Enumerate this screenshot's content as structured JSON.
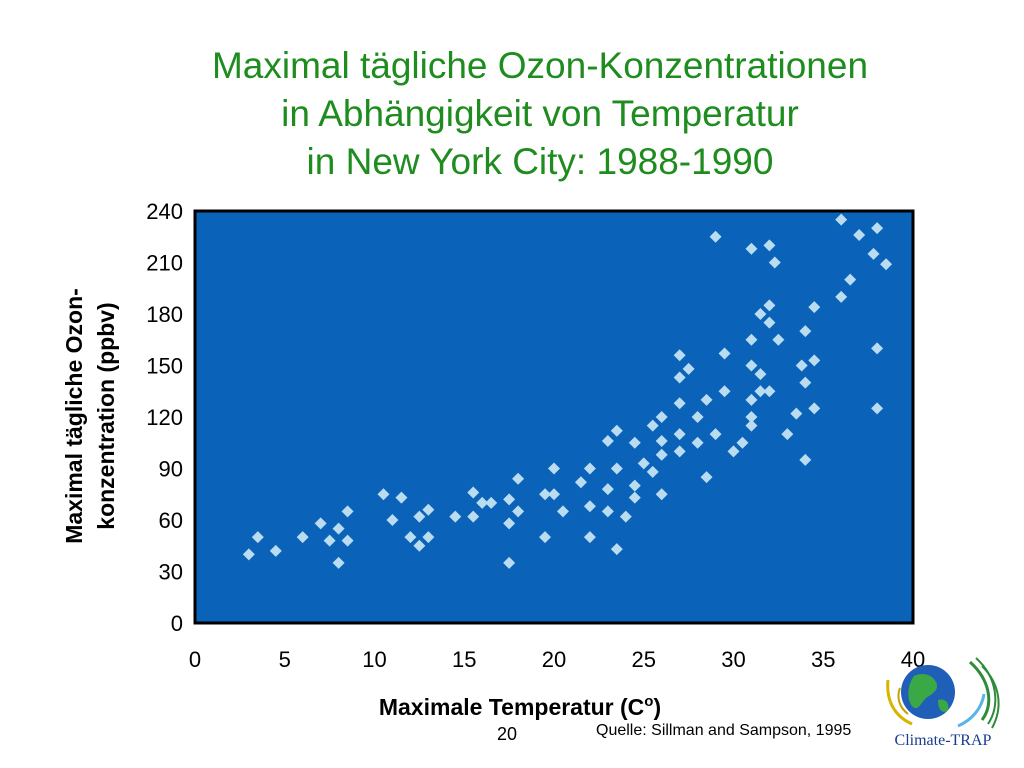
{
  "slide": {
    "title_lines": [
      "Maximal tägliche Ozon-Konzentrationen",
      "in Abhängigkeit von Temperatur",
      "in New York City: 1988-1990"
    ],
    "page_number": "20",
    "source": "Quelle: Sillman and Sampson, 1995",
    "logo_text": "Climate-TRAP"
  },
  "colors": {
    "title": "#1e8c1e",
    "plot_background": "#0a63b8",
    "marker": "#b9dcf0"
  },
  "chart_data": {
    "type": "scatter",
    "title": "Maximal tägliche Ozon-Konzentrationen in Abhängigkeit von Temperatur in New York City: 1988-1990",
    "xlabel": "Maximale Temperatur (Co)",
    "xlabel_main": "Maximale Temperatur (C",
    "xlabel_sup": "o",
    "xlabel_close": ")",
    "ylabel_line1": "Maximal tägliche Ozon-",
    "ylabel_line2": "konzentration (ppbv)",
    "xlim": [
      0,
      40
    ],
    "ylim": [
      0,
      240
    ],
    "xticks": [
      0,
      5,
      10,
      15,
      20,
      25,
      30,
      35,
      40
    ],
    "yticks": [
      0,
      30,
      60,
      90,
      120,
      150,
      180,
      210,
      240
    ],
    "grid": false,
    "marker": "diamond",
    "points": [
      [
        3.0,
        40
      ],
      [
        3.5,
        50
      ],
      [
        4.5,
        42
      ],
      [
        6.0,
        50
      ],
      [
        7.0,
        58
      ],
      [
        7.5,
        48
      ],
      [
        8.0,
        55
      ],
      [
        8.0,
        35
      ],
      [
        8.5,
        48
      ],
      [
        8.5,
        65
      ],
      [
        10.5,
        75
      ],
      [
        11.0,
        60
      ],
      [
        11.5,
        73
      ],
      [
        12.0,
        50
      ],
      [
        12.5,
        45
      ],
      [
        12.5,
        62
      ],
      [
        13.0,
        66
      ],
      [
        13.0,
        50
      ],
      [
        14.5,
        62
      ],
      [
        15.5,
        62
      ],
      [
        15.5,
        76
      ],
      [
        16.0,
        70
      ],
      [
        16.5,
        70
      ],
      [
        17.5,
        72
      ],
      [
        17.5,
        58
      ],
      [
        17.5,
        35
      ],
      [
        18.0,
        84
      ],
      [
        18.0,
        65
      ],
      [
        19.5,
        75
      ],
      [
        19.5,
        50
      ],
      [
        20.0,
        90
      ],
      [
        20.0,
        75
      ],
      [
        20.5,
        65
      ],
      [
        21.5,
        82
      ],
      [
        22.0,
        90
      ],
      [
        22.0,
        68
      ],
      [
        22.0,
        50
      ],
      [
        23.0,
        78
      ],
      [
        23.0,
        65
      ],
      [
        23.0,
        106
      ],
      [
        23.5,
        112
      ],
      [
        23.5,
        90
      ],
      [
        23.5,
        43
      ],
      [
        24.0,
        62
      ],
      [
        24.5,
        105
      ],
      [
        24.5,
        80
      ],
      [
        24.5,
        73
      ],
      [
        25.0,
        93
      ],
      [
        25.5,
        115
      ],
      [
        25.5,
        88
      ],
      [
        26.0,
        120
      ],
      [
        26.0,
        106
      ],
      [
        26.0,
        98
      ],
      [
        26.0,
        75
      ],
      [
        27.0,
        156
      ],
      [
        27.0,
        143
      ],
      [
        27.0,
        128
      ],
      [
        27.0,
        110
      ],
      [
        27.0,
        100
      ],
      [
        27.5,
        148
      ],
      [
        28.0,
        120
      ],
      [
        28.0,
        105
      ],
      [
        28.5,
        130
      ],
      [
        28.5,
        85
      ],
      [
        29.0,
        225
      ],
      [
        29.0,
        110
      ],
      [
        29.5,
        157
      ],
      [
        29.5,
        135
      ],
      [
        30.0,
        100
      ],
      [
        30.5,
        105
      ],
      [
        31.0,
        218
      ],
      [
        31.0,
        165
      ],
      [
        31.0,
        150
      ],
      [
        31.0,
        130
      ],
      [
        31.0,
        120
      ],
      [
        31.0,
        115
      ],
      [
        31.5,
        180
      ],
      [
        31.5,
        145
      ],
      [
        31.5,
        135
      ],
      [
        32.0,
        220
      ],
      [
        32.0,
        185
      ],
      [
        32.0,
        175
      ],
      [
        32.0,
        135
      ],
      [
        32.3,
        210
      ],
      [
        32.5,
        165
      ],
      [
        33.0,
        110
      ],
      [
        33.5,
        122
      ],
      [
        33.8,
        150
      ],
      [
        34.0,
        170
      ],
      [
        34.0,
        140
      ],
      [
        34.0,
        95
      ],
      [
        34.5,
        184
      ],
      [
        34.5,
        153
      ],
      [
        34.5,
        125
      ],
      [
        36.0,
        235
      ],
      [
        36.0,
        190
      ],
      [
        36.5,
        200
      ],
      [
        37.0,
        226
      ],
      [
        37.8,
        215
      ],
      [
        38.0,
        230
      ],
      [
        38.0,
        160
      ],
      [
        38.0,
        125
      ],
      [
        38.5,
        209
      ]
    ]
  }
}
